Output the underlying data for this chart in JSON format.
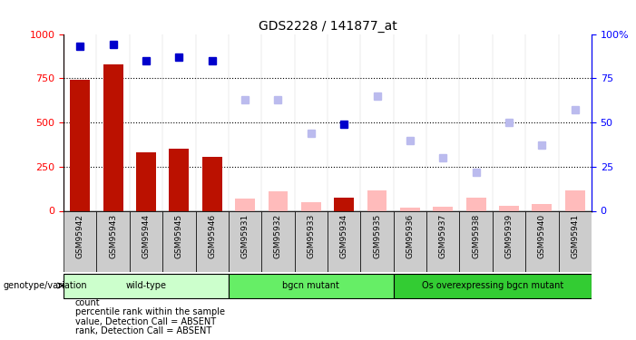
{
  "title": "GDS2228 / 141877_at",
  "samples": [
    "GSM95942",
    "GSM95943",
    "GSM95944",
    "GSM95945",
    "GSM95946",
    "GSM95931",
    "GSM95932",
    "GSM95933",
    "GSM95934",
    "GSM95935",
    "GSM95936",
    "GSM95937",
    "GSM95938",
    "GSM95939",
    "GSM95940",
    "GSM95941"
  ],
  "count_values": [
    740,
    830,
    330,
    350,
    305,
    70,
    110,
    50,
    75,
    115,
    20,
    25,
    75,
    30,
    40,
    115
  ],
  "count_present": [
    true,
    true,
    true,
    true,
    true,
    false,
    false,
    false,
    true,
    false,
    false,
    false,
    false,
    false,
    false,
    false
  ],
  "percentile_present": [
    true,
    true,
    true,
    true,
    true,
    false,
    false,
    false,
    true,
    false,
    false,
    false,
    false,
    false,
    false,
    false
  ],
  "percentile_values": [
    93,
    94,
    85,
    87,
    85,
    63,
    63,
    44,
    49,
    65,
    40,
    30,
    22,
    50,
    37,
    57
  ],
  "groups": [
    {
      "label": "wild-type",
      "start": 0,
      "end": 5,
      "color": "#ccffcc"
    },
    {
      "label": "bgcn mutant",
      "start": 5,
      "end": 10,
      "color": "#66ee66"
    },
    {
      "label": "Os overexpressing bgcn mutant",
      "start": 10,
      "end": 16,
      "color": "#33cc33"
    }
  ],
  "ylim_left": [
    0,
    1000
  ],
  "ylim_right": [
    0,
    100
  ],
  "yticks_left": [
    0,
    250,
    500,
    750,
    1000
  ],
  "yticks_right": [
    0,
    25,
    50,
    75,
    100
  ],
  "bar_color_present": "#bb1100",
  "bar_color_absent": "#ffbbbb",
  "dot_color_present": "#0000cc",
  "dot_color_absent": "#bbbbee",
  "group_row_color": "#cccccc",
  "background_color": "#ffffff",
  "legend_items": [
    {
      "color": "#bb1100",
      "marker": "s",
      "label": "count"
    },
    {
      "color": "#0000cc",
      "marker": "s",
      "label": "percentile rank within the sample"
    },
    {
      "color": "#ffbbbb",
      "marker": "s",
      "label": "value, Detection Call = ABSENT"
    },
    {
      "color": "#bbbbee",
      "marker": "s",
      "label": "rank, Detection Call = ABSENT"
    }
  ]
}
